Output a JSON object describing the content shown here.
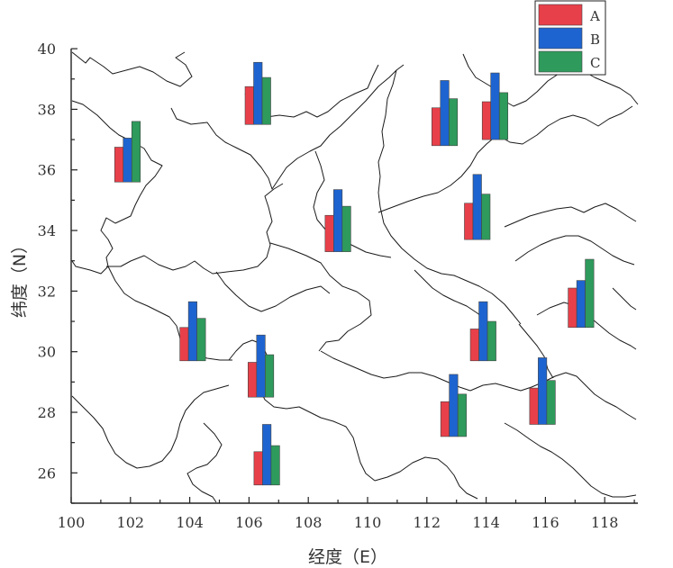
{
  "chart_data": {
    "type": "bar",
    "subtype": "bars-on-map",
    "xlabel": "经度（E）",
    "ylabel": "纬度（N）",
    "xlim": [
      100,
      119
    ],
    "ylim": [
      25,
      40
    ],
    "x_ticks": [
      "100",
      "102",
      "104",
      "106",
      "108",
      "110",
      "112",
      "114",
      "116",
      "118"
    ],
    "y_ticks": [
      "26",
      "28",
      "30",
      "32",
      "34",
      "36",
      "38",
      "40"
    ],
    "legend_placement": "top-right",
    "series_names": [
      "A",
      "B",
      "C"
    ],
    "colors": {
      "A": "#e8404a",
      "B": "#1e64d0",
      "C": "#2e9a5c"
    },
    "sites": [
      {
        "lon": 101.9,
        "lat": 35.6,
        "A": 1.15,
        "B": 1.45,
        "C": 2.0
      },
      {
        "lon": 106.3,
        "lat": 37.5,
        "A": 1.25,
        "B": 2.05,
        "C": 1.55
      },
      {
        "lon": 112.6,
        "lat": 36.8,
        "A": 1.25,
        "B": 2.15,
        "C": 1.55
      },
      {
        "lon": 114.3,
        "lat": 37.0,
        "A": 1.25,
        "B": 2.2,
        "C": 1.55
      },
      {
        "lon": 109.0,
        "lat": 33.3,
        "A": 1.2,
        "B": 2.05,
        "C": 1.5
      },
      {
        "lon": 113.7,
        "lat": 33.7,
        "A": 1.2,
        "B": 2.15,
        "C": 1.5
      },
      {
        "lon": 117.2,
        "lat": 30.8,
        "A": 1.3,
        "B": 1.55,
        "C": 2.25
      },
      {
        "lon": 104.1,
        "lat": 29.7,
        "A": 1.1,
        "B": 1.95,
        "C": 1.4
      },
      {
        "lon": 113.9,
        "lat": 29.7,
        "A": 1.05,
        "B": 1.95,
        "C": 1.3
      },
      {
        "lon": 106.4,
        "lat": 28.5,
        "A": 1.15,
        "B": 2.05,
        "C": 1.4
      },
      {
        "lon": 112.9,
        "lat": 27.2,
        "A": 1.15,
        "B": 2.05,
        "C": 1.4
      },
      {
        "lon": 115.9,
        "lat": 27.6,
        "A": 1.2,
        "B": 2.2,
        "C": 1.45
      },
      {
        "lon": 106.6,
        "lat": 25.6,
        "A": 1.1,
        "B": 2.0,
        "C": 1.3
      }
    ]
  }
}
